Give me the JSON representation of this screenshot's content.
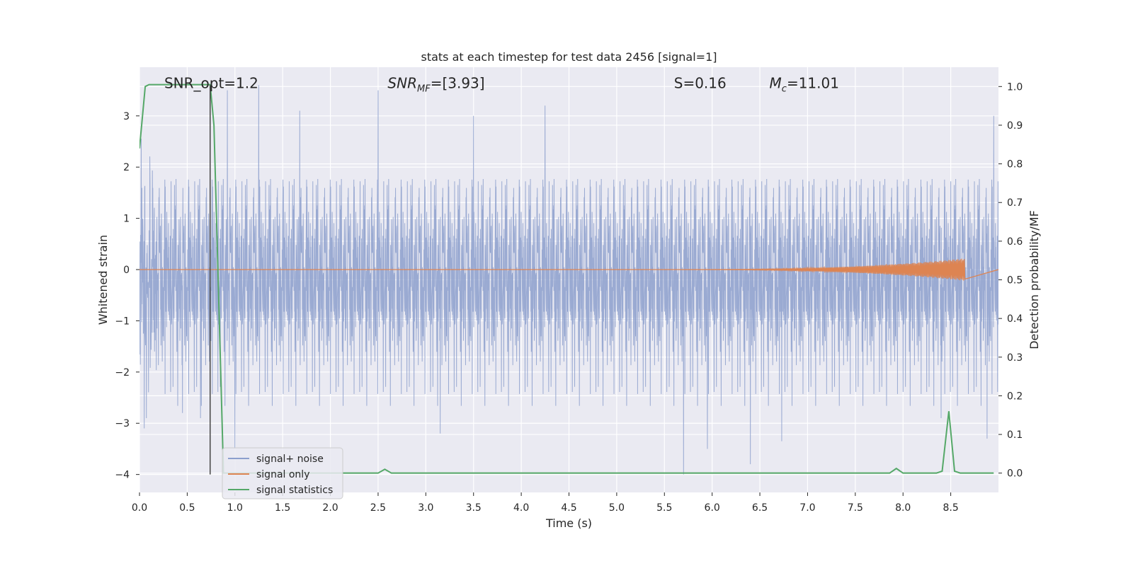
{
  "chart_data": {
    "type": "line",
    "title": "stats at each timestep for test data 2456 [signal=1]",
    "xlabel": "Time (s)",
    "ylabel_left": "Whitened strain",
    "ylabel_right": "Detection probability/MF",
    "xlim": [
      0.0,
      9.0
    ],
    "ylim_left": [
      -4.35,
      3.95
    ],
    "ylim_right": [
      -0.05,
      1.05
    ],
    "xticks": [
      "0.0",
      "0.5",
      "1.0",
      "1.5",
      "2.0",
      "2.5",
      "3.0",
      "3.5",
      "4.0",
      "4.5",
      "5.0",
      "5.5",
      "6.0",
      "6.5",
      "7.0",
      "7.5",
      "8.0",
      "8.5"
    ],
    "xtick_values": [
      0.0,
      0.5,
      1.0,
      1.5,
      2.0,
      2.5,
      3.0,
      3.5,
      4.0,
      4.5,
      5.0,
      5.5,
      6.0,
      6.5,
      7.0,
      7.5,
      8.0,
      8.5
    ],
    "yticks_left": [
      "−4",
      "−3",
      "−2",
      "−1",
      "0",
      "1",
      "2",
      "3"
    ],
    "ytick_values_left": [
      -4,
      -3,
      -2,
      -1,
      0,
      1,
      2,
      3
    ],
    "yticks_right": [
      "0.0",
      "0.1",
      "0.2",
      "0.3",
      "0.4",
      "0.5",
      "0.6",
      "0.7",
      "0.8",
      "0.9",
      "1.0"
    ],
    "ytick_values_right": [
      0.0,
      0.1,
      0.2,
      0.3,
      0.4,
      0.5,
      0.6,
      0.7,
      0.8,
      0.9,
      1.0
    ],
    "annotations": [
      {
        "text": "SNR_opt=1.2",
        "x": 0.2,
        "y": 3.6
      },
      {
        "text": "SNR_MF=[3.93]",
        "x": 2.6,
        "y": 3.6
      },
      {
        "text": "S=0.16",
        "x": 5.6,
        "y": 3.6
      },
      {
        "text": "M_c=11.01",
        "x": 6.6,
        "y": 3.6
      }
    ],
    "vline_x": 0.74,
    "vline_ymin": -4.0,
    "vline_ymax": 3.6,
    "grid": true,
    "legend_position": "lower-left",
    "colors": {
      "noise": "#8c9fcd",
      "signal": "#dd8452",
      "stats": "#55a868",
      "background": "#eaeaf2",
      "grid": "#ffffff"
    },
    "series": [
      {
        "name": "signal+ noise",
        "axis": "left",
        "description_kind": "noise",
        "typical_range": [
          -1.8,
          1.8
        ],
        "peak_range": [
          -4.0,
          3.6
        ],
        "peaks": [
          {
            "x": 0.05,
            "y": -3.1
          },
          {
            "x": 0.45,
            "y": -2.8
          },
          {
            "x": 0.64,
            "y": -2.9
          },
          {
            "x": 0.92,
            "y": 3.5
          },
          {
            "x": 1.0,
            "y": -3.5
          },
          {
            "x": 1.25,
            "y": 3.6
          },
          {
            "x": 1.68,
            "y": 3.1
          },
          {
            "x": 2.5,
            "y": 3.5
          },
          {
            "x": 3.15,
            "y": -3.2
          },
          {
            "x": 3.5,
            "y": 3.0
          },
          {
            "x": 4.25,
            "y": 3.2
          },
          {
            "x": 5.7,
            "y": -4.0
          },
          {
            "x": 5.95,
            "y": -3.5
          },
          {
            "x": 6.4,
            "y": -3.8
          },
          {
            "x": 6.73,
            "y": -3.35
          },
          {
            "x": 8.4,
            "y": -2.9
          },
          {
            "x": 8.88,
            "y": -3.3
          },
          {
            "x": 8.95,
            "y": 3.0
          }
        ]
      },
      {
        "name": "signal only",
        "axis": "left",
        "description_kind": "chirp",
        "chirp_start_x": 5.3,
        "chirp_end_x": 8.65,
        "chirp_max_amp": 0.22
      },
      {
        "name": "signal statistics",
        "axis": "right",
        "x": [
          0.0,
          0.06,
          0.1,
          0.74,
          0.78,
          0.88,
          0.92,
          2.5,
          2.57,
          2.64,
          2.7,
          7.86,
          7.93,
          8.0,
          8.05,
          8.35,
          8.41,
          8.48,
          8.54,
          8.6,
          8.95
        ],
        "values": [
          0.84,
          1.0,
          1.005,
          1.005,
          0.9,
          0.0,
          0.0,
          0.0,
          0.01,
          0.0,
          0.0,
          0.0,
          0.012,
          0.0,
          0.0,
          0.0,
          0.005,
          0.16,
          0.005,
          0.0,
          0.0
        ]
      }
    ]
  }
}
